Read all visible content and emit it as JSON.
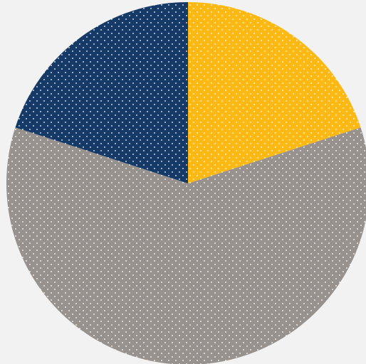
{
  "chart_data": {
    "type": "pie",
    "slices": [
      {
        "value": 20,
        "color": "#FDB913",
        "pattern": "dotted"
      },
      {
        "value": 60,
        "color": "#98928E",
        "pattern": "dotted"
      },
      {
        "value": 20,
        "color": "#163A67",
        "pattern": "dotted"
      }
    ],
    "start": "12 o'clock",
    "direction": "clockwise",
    "legend": "none",
    "title": ""
  },
  "colors": {
    "background": "#F2F2F2",
    "dot_pattern": "#FFFFFF"
  }
}
